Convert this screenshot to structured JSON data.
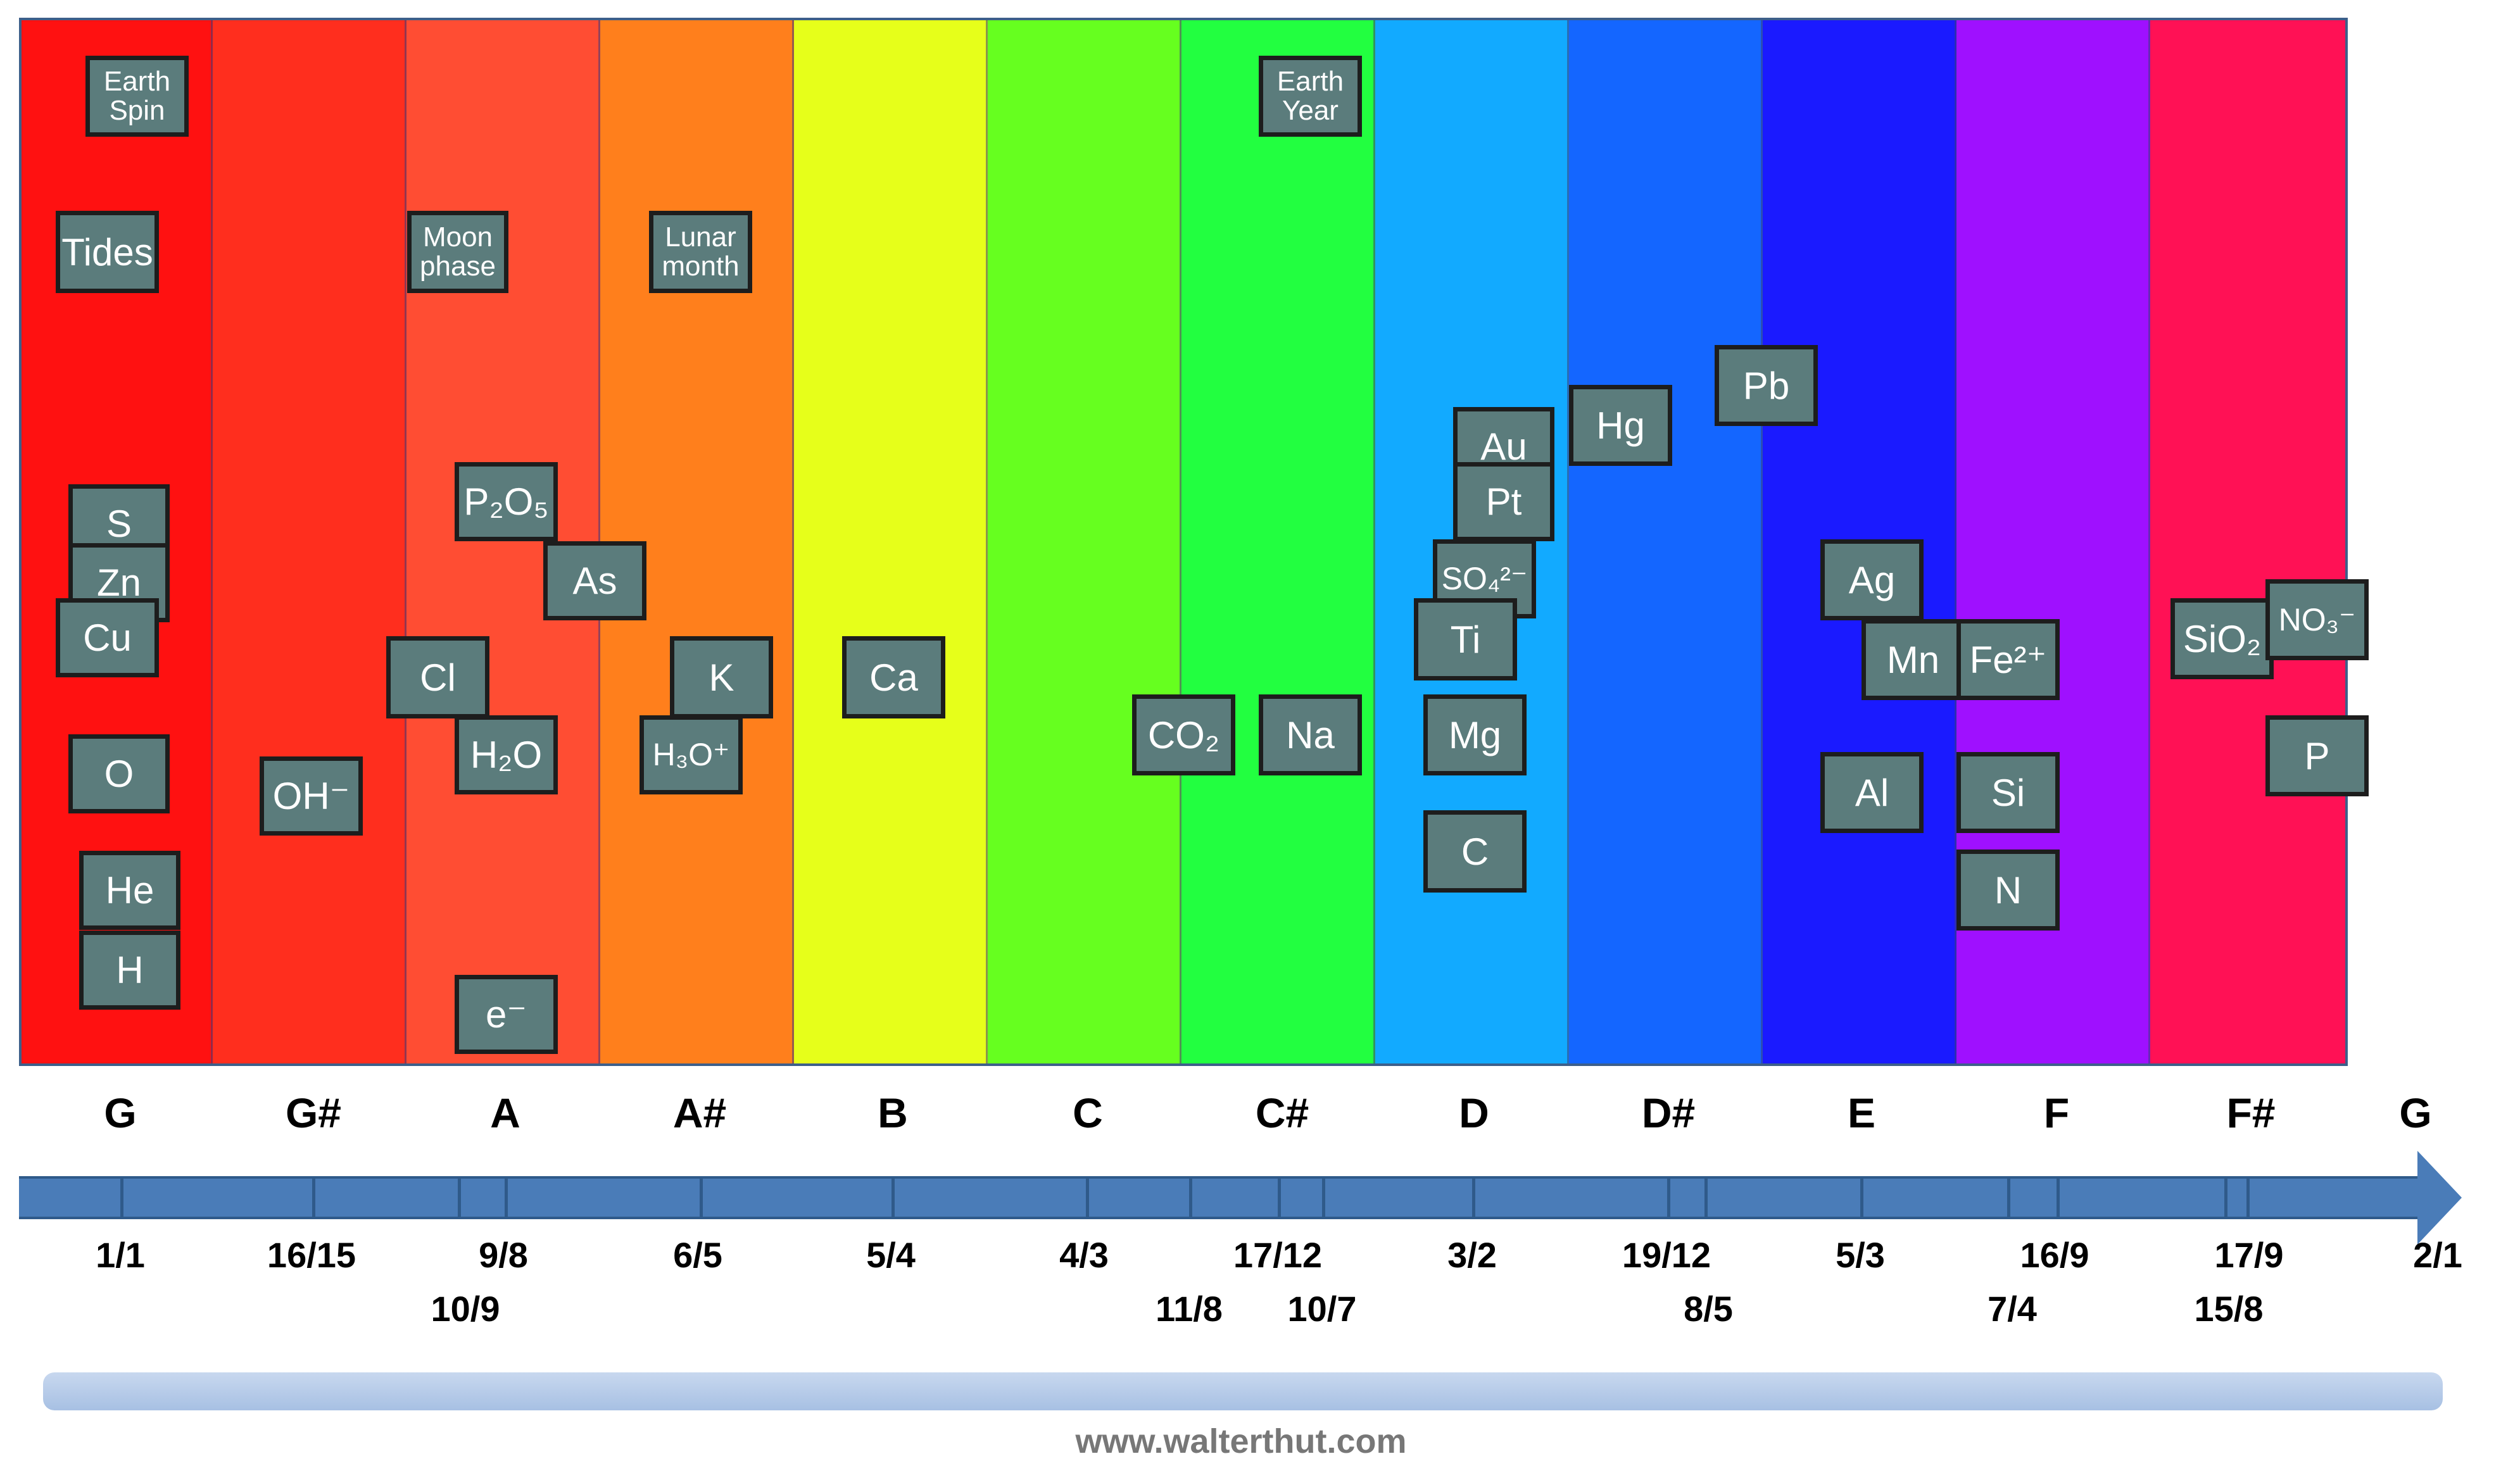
{
  "bands": [
    {
      "color": "#ff1111"
    },
    {
      "color": "#ff2e1e"
    },
    {
      "color": "#ff4d33"
    },
    {
      "color": "#ff7f1c"
    },
    {
      "color": "#e6ff1a"
    },
    {
      "color": "#66ff1f"
    },
    {
      "color": "#22ff40"
    },
    {
      "color": "#12aaff"
    },
    {
      "color": "#1466ff"
    },
    {
      "color": "#1a1aff"
    },
    {
      "color": "#9f10ff"
    },
    {
      "color": "#ff1155"
    }
  ],
  "tiles": [
    {
      "name": "tile-earth-spin",
      "lines": [
        "Earth",
        "Spin"
      ]
    },
    {
      "name": "tile-tides",
      "lines": [
        "Tides"
      ]
    },
    {
      "name": "tile-moon-phase",
      "lines": [
        "Moon",
        "phase"
      ]
    },
    {
      "name": "tile-lunar-month",
      "lines": [
        "Lunar",
        "month"
      ]
    },
    {
      "name": "tile-earth-year",
      "lines": [
        "Earth",
        "Year"
      ]
    },
    {
      "name": "tile-s",
      "lines": [
        "S"
      ]
    },
    {
      "name": "tile-zn",
      "lines": [
        "Zn"
      ]
    },
    {
      "name": "tile-cu",
      "lines": [
        "Cu"
      ]
    },
    {
      "name": "tile-o",
      "lines": [
        "O"
      ]
    },
    {
      "name": "tile-he",
      "lines": [
        "He"
      ]
    },
    {
      "name": "tile-h",
      "lines": [
        "H"
      ]
    },
    {
      "name": "tile-oh",
      "lines": [
        "OH⁻"
      ]
    },
    {
      "name": "tile-p2o5",
      "lines": [
        "P₂O₅"
      ]
    },
    {
      "name": "tile-as",
      "lines": [
        "As"
      ]
    },
    {
      "name": "tile-cl",
      "lines": [
        "Cl"
      ]
    },
    {
      "name": "tile-h2o",
      "lines": [
        "H₂O"
      ]
    },
    {
      "name": "tile-e",
      "lines": [
        "e⁻"
      ]
    },
    {
      "name": "tile-k",
      "lines": [
        "K"
      ]
    },
    {
      "name": "tile-h3o",
      "lines": [
        "H₃O⁺"
      ]
    },
    {
      "name": "tile-ca",
      "lines": [
        "Ca"
      ]
    },
    {
      "name": "tile-co2",
      "lines": [
        "CO₂"
      ]
    },
    {
      "name": "tile-na",
      "lines": [
        "Na"
      ]
    },
    {
      "name": "tile-au",
      "lines": [
        "Au"
      ]
    },
    {
      "name": "tile-pt",
      "lines": [
        "Pt"
      ]
    },
    {
      "name": "tile-so4",
      "lines": [
        "SO₄²⁻"
      ]
    },
    {
      "name": "tile-ti",
      "lines": [
        "Ti"
      ]
    },
    {
      "name": "tile-mg",
      "lines": [
        "Mg"
      ]
    },
    {
      "name": "tile-c",
      "lines": [
        "C"
      ]
    },
    {
      "name": "tile-hg",
      "lines": [
        "Hg"
      ]
    },
    {
      "name": "tile-pb",
      "lines": [
        "Pb"
      ]
    },
    {
      "name": "tile-ag",
      "lines": [
        "Ag"
      ]
    },
    {
      "name": "tile-mn",
      "lines": [
        "Mn"
      ]
    },
    {
      "name": "tile-fe",
      "lines": [
        "Fe²⁺"
      ]
    },
    {
      "name": "tile-al",
      "lines": [
        "Al"
      ]
    },
    {
      "name": "tile-si",
      "lines": [
        "Si"
      ]
    },
    {
      "name": "tile-n",
      "lines": [
        "N"
      ]
    },
    {
      "name": "tile-sio2",
      "lines": [
        "SiO₂"
      ]
    },
    {
      "name": "tile-no3",
      "lines": [
        "NO₃⁻"
      ]
    },
    {
      "name": "tile-p",
      "lines": [
        "P"
      ]
    }
  ],
  "notes": [
    "G",
    "G#",
    "A",
    "A#",
    "B",
    "C",
    "C#",
    "D",
    "D#",
    "E",
    "F",
    "F#",
    "G"
  ],
  "ratios_upper": [
    "1/1",
    "16/15",
    "9/8",
    "6/5",
    "5/4",
    "4/3",
    "17/12",
    "3/2",
    "19/12",
    "5/3",
    "16/9",
    "17/9",
    "2/1"
  ],
  "ratios_lower": [
    "10/9",
    "11/8",
    "10/7",
    "8/5",
    "7/4",
    "15/8"
  ],
  "credit": "www.walterthut.com"
}
